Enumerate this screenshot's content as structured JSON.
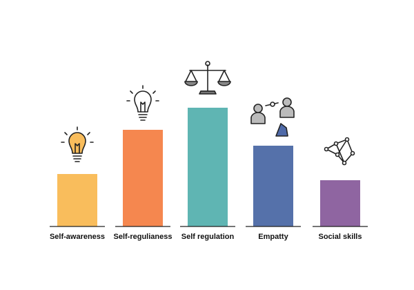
{
  "chart_data": {
    "type": "bar",
    "categories": [
      "Self-awareness",
      "Self-regulianess",
      "Self regulation",
      "Empatty",
      "Social skills"
    ],
    "values": [
      76,
      140,
      172,
      117,
      67
    ],
    "colors": [
      "#f9bd5c",
      "#f5874f",
      "#5fb5b3",
      "#5571aa",
      "#8f65a1"
    ],
    "ylim": [
      0,
      200
    ]
  }
}
